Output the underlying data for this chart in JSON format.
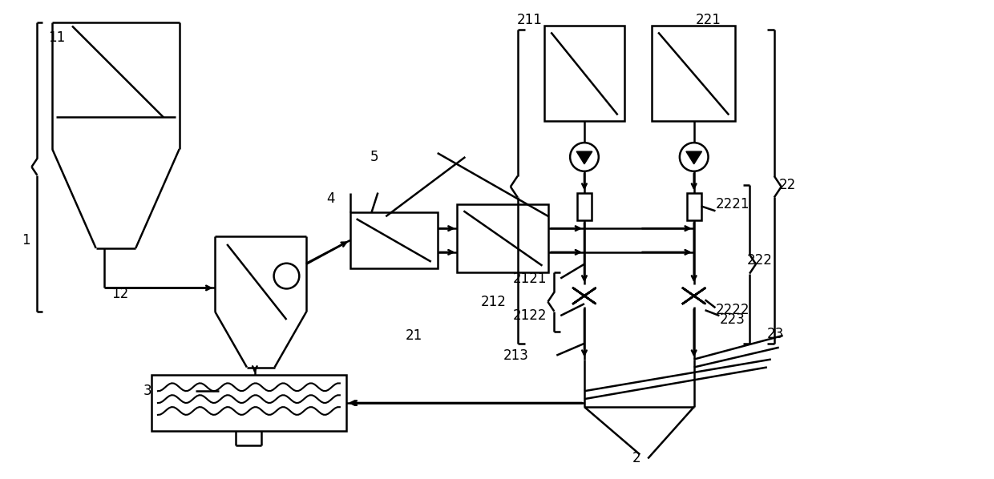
{
  "bg": "#ffffff",
  "lc": "#000000",
  "lw": 1.8,
  "figsize": [
    12.4,
    5.98
  ]
}
